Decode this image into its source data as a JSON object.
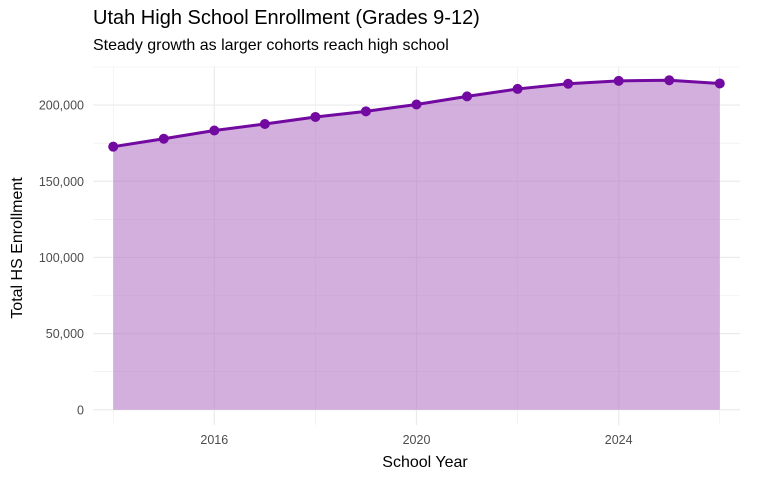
{
  "chart_data": {
    "type": "area",
    "title": "Utah High School Enrollment (Grades 9-12)",
    "subtitle": "Steady growth as larger cohorts reach high school",
    "xlabel": "School Year",
    "ylabel": "Total HS Enrollment",
    "x": [
      2014,
      2015,
      2016,
      2017,
      2018,
      2019,
      2020,
      2021,
      2022,
      2023,
      2024,
      2025,
      2026
    ],
    "values": [
      172700,
      177900,
      183300,
      187600,
      192200,
      195900,
      200400,
      205700,
      210600,
      214000,
      215900,
      216300,
      214200
    ],
    "xlim": [
      2013.6,
      2026.4
    ],
    "ylim": [
      -10000,
      225000
    ],
    "x_ticks": [
      2016,
      2020,
      2024
    ],
    "x_tick_labels": [
      "2016",
      "2020",
      "2024"
    ],
    "y_ticks": [
      0,
      50000,
      100000,
      150000,
      200000
    ],
    "y_tick_labels": [
      "0",
      "50,000",
      "100,000",
      "150,000",
      "200,000"
    ],
    "grid": true,
    "legend": "none",
    "colors": {
      "line": "#7209a0",
      "fill": "#b679c6",
      "grid": "#ebebeb",
      "background": "#ffffff"
    }
  }
}
